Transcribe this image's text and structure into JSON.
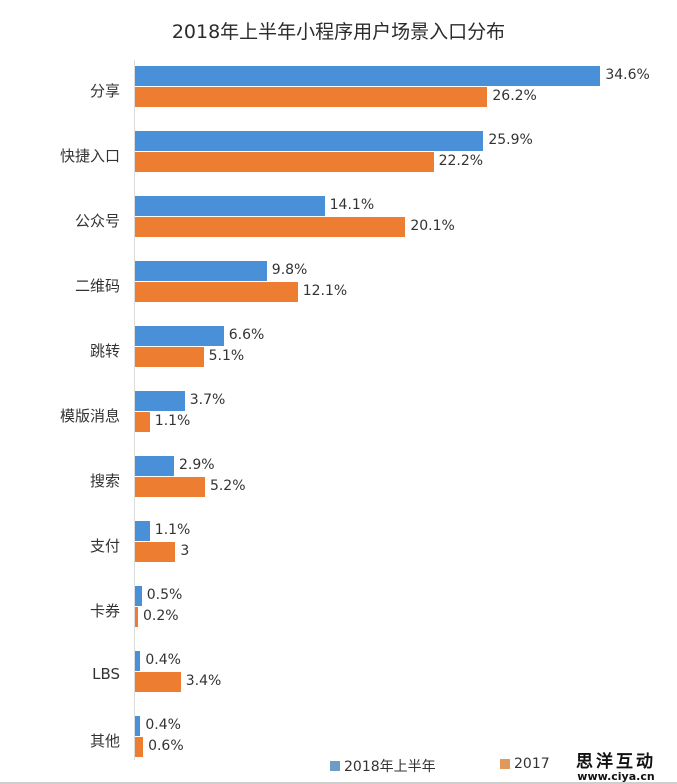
{
  "title": "2018年上半年小程序用户场景入口分布",
  "colors": {
    "series1": "#4a90d9",
    "series2": "#ed7d31"
  },
  "legend": [
    {
      "label": "2018年上半年",
      "color": "#4a90d9"
    },
    {
      "label": "2017",
      "color": "#ed7d31"
    }
  ],
  "watermark": {
    "line1": "思洋互动",
    "line2": "www.ciya.cn"
  },
  "rows": [
    {
      "category": "分享",
      "v1": 34.6,
      "l1": "34.6%",
      "v2": 26.2,
      "l2": "26.2%"
    },
    {
      "category": "快捷入口",
      "v1": 25.9,
      "l1": "25.9%",
      "v2": 22.2,
      "l2": "22.2%"
    },
    {
      "category": "公众号",
      "v1": 14.1,
      "l1": "14.1%",
      "v2": 20.1,
      "l2": "20.1%"
    },
    {
      "category": "二维码",
      "v1": 9.8,
      "l1": "9.8%",
      "v2": 12.1,
      "l2": "12.1%"
    },
    {
      "category": "跳转",
      "v1": 6.6,
      "l1": "6.6%",
      "v2": 5.1,
      "l2": "5.1%"
    },
    {
      "category": "模版消息",
      "v1": 3.7,
      "l1": "3.7%",
      "v2": 1.1,
      "l2": "1.1%"
    },
    {
      "category": "搜索",
      "v1": 2.9,
      "l1": "2.9%",
      "v2": 5.2,
      "l2": "5.2%"
    },
    {
      "category": "支付",
      "v1": 1.1,
      "l1": "1.1%",
      "v2": 3.0,
      "l2": "3"
    },
    {
      "category": "卡券",
      "v1": 0.5,
      "l1": "0.5%",
      "v2": 0.2,
      "l2": "0.2%"
    },
    {
      "category": "LBS",
      "v1": 0.4,
      "l1": "0.4%",
      "v2": 3.4,
      "l2": "3.4%"
    },
    {
      "category": "其他",
      "v1": 0.4,
      "l1": "0.4%",
      "v2": 0.6,
      "l2": "0.6%"
    }
  ],
  "chart_data": {
    "type": "bar",
    "orientation": "horizontal",
    "title": "2018年上半年小程序用户场景入口分布",
    "categories": [
      "分享",
      "快捷入口",
      "公众号",
      "二维码",
      "跳转",
      "模版消息",
      "搜索",
      "支付",
      "卡券",
      "LBS",
      "其他"
    ],
    "series": [
      {
        "name": "2018年上半年",
        "color": "#4a90d9",
        "values": [
          34.6,
          25.9,
          14.1,
          9.8,
          6.6,
          3.7,
          2.9,
          1.1,
          0.5,
          0.4,
          0.4
        ]
      },
      {
        "name": "2017",
        "color": "#ed7d31",
        "values": [
          26.2,
          22.2,
          20.1,
          12.1,
          5.1,
          1.1,
          5.2,
          3.0,
          0.2,
          3.4,
          0.6
        ]
      }
    ],
    "data_labels": {
      "2018年上半年": [
        "34.6%",
        "25.9%",
        "14.1%",
        "9.8%",
        "6.6%",
        "3.7%",
        "2.9%",
        "1.1%",
        "0.5%",
        "0.4%",
        "0.4%"
      ],
      "2017": [
        "26.2%",
        "22.2%",
        "20.1%",
        "12.1%",
        "5.1%",
        "1.1%",
        "5.2%",
        "3",
        "0.2%",
        "3.4%",
        "0.6%"
      ]
    },
    "xlabel": "",
    "ylabel": "",
    "unit": "%",
    "grid": false,
    "legend_position": "bottom"
  }
}
